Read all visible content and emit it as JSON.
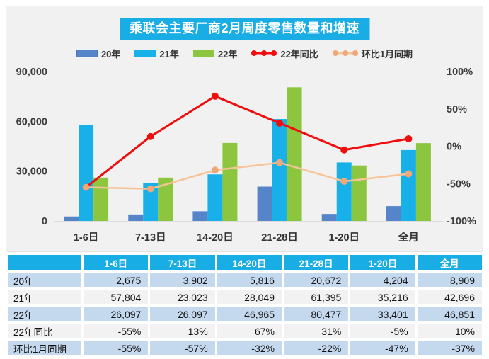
{
  "chart_data": {
    "type": "bar+line combo",
    "title": "乘联会主要厂商2月周度零售数量和增速",
    "categories": [
      "1-6日",
      "7-13日",
      "14-20日",
      "21-28日",
      "1-20日",
      "全月"
    ],
    "bar_series": [
      {
        "name": "20年",
        "color": "#5585c8",
        "border": "#4a77b5",
        "values": [
          2675,
          3902,
          5816,
          20672,
          4204,
          8909
        ]
      },
      {
        "name": "21年",
        "color": "#18b0e8",
        "border": "#18b0e8",
        "values": [
          57804,
          23023,
          28049,
          61395,
          35216,
          42696
        ]
      },
      {
        "name": "22年",
        "color": "#8cc63f",
        "border": "#8cc63f",
        "values": [
          26097,
          26097,
          46965,
          80477,
          33401,
          46851
        ]
      }
    ],
    "line_series": [
      {
        "name": "22年同比",
        "color": "#f00d0d",
        "marker_color": "#f00d0d",
        "values": [
          -55,
          13,
          67,
          31,
          -5,
          10
        ]
      },
      {
        "name": "环比1月同期",
        "color": "#f7c499",
        "marker_color": "#efa878",
        "values": [
          -55,
          -57,
          -32,
          -22,
          -47,
          -37
        ]
      }
    ],
    "left_axis": {
      "min": 0,
      "max": 90000,
      "tick_labels": [
        "0",
        "30,000",
        "60,000",
        "90,000"
      ]
    },
    "right_axis": {
      "min": -100,
      "max": 100,
      "tick_labels": [
        "-100%",
        "-50%",
        "0%",
        "50%",
        "100%"
      ]
    },
    "grid": false,
    "legend_position": "top",
    "colors": {
      "accent_cyan": "#18ade5",
      "panel_bg": "#f1f1f1",
      "baseline": "#dcdcdc",
      "axis_text": "#3c3c3c"
    }
  },
  "table": {
    "header": [
      "",
      "1-6日",
      "7-13日",
      "14-20日",
      "21-28日",
      "1-20日",
      "全月"
    ],
    "rows": [
      {
        "label": "20年",
        "values": [
          "2,675",
          "3,902",
          "5,816",
          "20,672",
          "4,204",
          "8,909"
        ]
      },
      {
        "label": "21年",
        "values": [
          "57,804",
          "23,023",
          "28,049",
          "61,395",
          "35,216",
          "42,696"
        ]
      },
      {
        "label": "22年",
        "values": [
          "26,097",
          "26,097",
          "46,965",
          "80,477",
          "33,401",
          "46,851"
        ]
      },
      {
        "label": "22年同比",
        "values": [
          "-55%",
          "13%",
          "67%",
          "31%",
          "-5%",
          "10%"
        ]
      },
      {
        "label": "环比1月同期",
        "values": [
          "-55%",
          "-57%",
          "-32%",
          "-22%",
          "-47%",
          "-37%"
        ]
      }
    ]
  }
}
